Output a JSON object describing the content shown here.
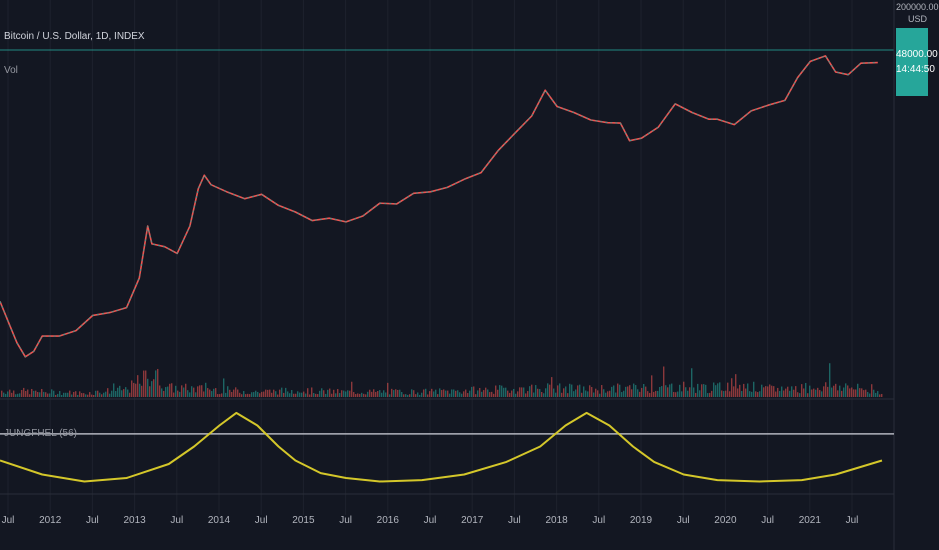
{
  "header": {
    "symbol_title": "Bitcoin / U.S. Dollar, 1D, INDEX",
    "volume_label": "Vol",
    "indicator_label": "JUNGFHEL (56)"
  },
  "price_scale": {
    "top_value": "200000.00",
    "currency": "USD",
    "last_price": "48000.00",
    "countdown": "14:44:50"
  },
  "colors": {
    "background": "#131722",
    "up": "#26a69a",
    "down": "#ef5350",
    "oscillator": "#d4c72a",
    "threshold": "#b2b5be",
    "last_price_line": "#26a69a",
    "grid": "#1e222d"
  },
  "chart_data": [
    {
      "type": "line",
      "title": "Bitcoin / U.S. Dollar, 1D, INDEX",
      "x_tick_labels": [
        "Jul",
        "2012",
        "Jul",
        "2013",
        "Jul",
        "2014",
        "Jul",
        "2015",
        "Jul",
        "2016",
        "Jul",
        "2017",
        "Jul",
        "2018",
        "Jul",
        "2019",
        "Jul",
        "2020",
        "Jul",
        "2021",
        "Jul"
      ],
      "xlim": [
        2011.5,
        2021.95
      ],
      "y_scale": "log",
      "ylim": [
        1.5,
        200000
      ],
      "x": [
        2011.5,
        2011.6,
        2011.7,
        2011.8,
        2011.9,
        2012.0,
        2012.2,
        2012.4,
        2012.6,
        2012.8,
        2013.0,
        2013.15,
        2013.25,
        2013.3,
        2013.45,
        2013.6,
        2013.75,
        2013.85,
        2013.92,
        2014.0,
        2014.2,
        2014.4,
        2014.6,
        2014.8,
        2015.0,
        2015.2,
        2015.4,
        2015.6,
        2015.8,
        2016.0,
        2016.2,
        2016.4,
        2016.6,
        2016.8,
        2017.0,
        2017.2,
        2017.4,
        2017.6,
        2017.8,
        2017.96,
        2018.1,
        2018.3,
        2018.5,
        2018.7,
        2018.85,
        2018.96,
        2019.1,
        2019.3,
        2019.5,
        2019.7,
        2019.9,
        2020.0,
        2020.2,
        2020.4,
        2020.6,
        2020.8,
        2020.95,
        2021.1,
        2021.28,
        2021.4,
        2021.55,
        2021.7,
        2021.9
      ],
      "values": [
        16,
        8,
        4,
        2.5,
        3,
        5,
        5,
        6,
        10,
        11,
        13,
        35,
        200,
        110,
        100,
        80,
        200,
        700,
        1100,
        800,
        620,
        500,
        580,
        400,
        320,
        240,
        260,
        230,
        280,
        430,
        420,
        600,
        630,
        730,
        960,
        1200,
        2500,
        4500,
        8000,
        19000,
        11000,
        9000,
        7000,
        6400,
        6300,
        3500,
        3800,
        5500,
        12000,
        9000,
        7200,
        7200,
        6000,
        9500,
        11500,
        13500,
        29000,
        50000,
        60000,
        35000,
        32000,
        47000,
        48000
      ],
      "last_value": 48000
    },
    {
      "type": "bar",
      "title": "Vol",
      "note": "volume histogram, relative activity per period",
      "x": [
        2011.5,
        2012.0,
        2012.5,
        2013.0,
        2013.3,
        2013.5,
        2014.0,
        2014.5,
        2015.0,
        2015.5,
        2016.0,
        2016.5,
        2017.0,
        2017.5,
        2018.0,
        2018.5,
        2019.0,
        2019.5,
        2020.0,
        2020.2,
        2020.5,
        2021.0,
        2021.4,
        2021.9
      ],
      "values": [
        0.25,
        0.2,
        0.15,
        0.3,
        0.9,
        0.35,
        0.3,
        0.2,
        0.25,
        0.2,
        0.2,
        0.2,
        0.25,
        0.3,
        0.35,
        0.3,
        0.35,
        0.4,
        0.35,
        0.6,
        0.3,
        0.35,
        0.45,
        0.2
      ]
    },
    {
      "type": "line",
      "title": "JUNGFHEL (56)",
      "series": [
        {
          "name": "JUNGFHEL (56)",
          "x": [
            2011.5,
            2012.0,
            2012.5,
            2013.0,
            2013.5,
            2013.8,
            2014.1,
            2014.3,
            2014.55,
            2014.8,
            2015.0,
            2015.3,
            2015.6,
            2016.0,
            2016.5,
            2017.0,
            2017.5,
            2017.9,
            2018.2,
            2018.45,
            2018.72,
            2019.0,
            2019.25,
            2019.6,
            2020.0,
            2020.5,
            2021.0,
            2021.4,
            2021.95
          ],
          "values": [
            0.3,
            0.1,
            0.0,
            0.05,
            0.25,
            0.5,
            0.8,
            0.98,
            0.8,
            0.5,
            0.3,
            0.12,
            0.05,
            0.0,
            0.02,
            0.1,
            0.28,
            0.5,
            0.8,
            0.98,
            0.8,
            0.5,
            0.28,
            0.1,
            0.02,
            0.0,
            0.02,
            0.1,
            0.3
          ]
        }
      ],
      "threshold": 0.68,
      "ylim": [
        -0.05,
        1.05
      ]
    }
  ]
}
